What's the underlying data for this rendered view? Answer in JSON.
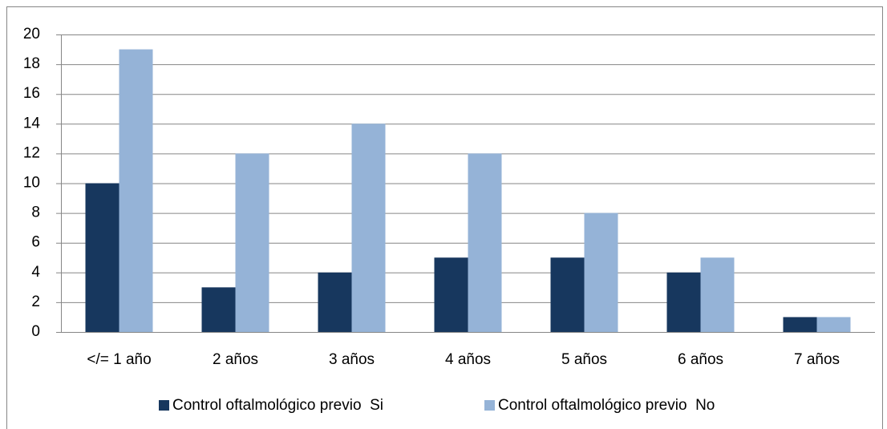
{
  "chart_data": {
    "type": "bar",
    "categories": [
      "</= 1 año",
      "2 años",
      "3 años",
      "4 años",
      "5 años",
      "6 años",
      "7 años"
    ],
    "series": [
      {
        "name": "Control oftalmológico previo  Si",
        "color": "#17375e",
        "values": [
          10,
          3,
          4,
          5,
          5,
          4,
          1
        ]
      },
      {
        "name": "Control oftalmológico previo  No",
        "color": "#95b3d7",
        "values": [
          19,
          12,
          14,
          12,
          8,
          5,
          1
        ]
      }
    ],
    "ylim": [
      0,
      20
    ],
    "yticks": [
      0,
      2,
      4,
      6,
      8,
      10,
      12,
      14,
      16,
      18,
      20
    ],
    "grid": true,
    "legend": "bottom"
  }
}
